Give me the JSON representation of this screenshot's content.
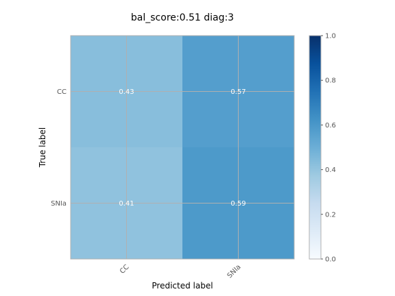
{
  "chart_data": {
    "type": "heatmap",
    "title": "bal_score:0.51 diag:3",
    "xlabel": "Predicted label",
    "ylabel": "True label",
    "row_labels": [
      "CC",
      "SNIa"
    ],
    "col_labels": [
      "CC",
      "SNIa"
    ],
    "values": [
      [
        0.43,
        0.57
      ],
      [
        0.41,
        0.59
      ]
    ],
    "cell_labels": [
      [
        "0.43",
        "0.57"
      ],
      [
        "0.41",
        "0.59"
      ]
    ],
    "colorbar": {
      "range": [
        0.0,
        1.0
      ],
      "ticks": [
        "0.0",
        "0.2",
        "0.4",
        "0.6",
        "0.8",
        "1.0"
      ],
      "colormap": "Blues"
    },
    "grid": true
  },
  "colors": {
    "grid": "#b0b0b0",
    "cell_text": "#ffffff",
    "tick_text": "#555555",
    "axis_text": "#000000"
  }
}
